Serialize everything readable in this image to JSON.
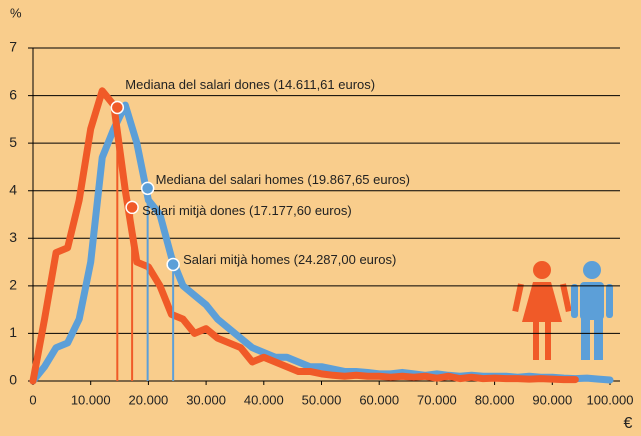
{
  "chart_data": {
    "type": "line",
    "ylabel": "%",
    "xlabel": "€",
    "x": [
      0,
      2000,
      4000,
      6000,
      8000,
      10000,
      12000,
      14000,
      16000,
      18000,
      20000,
      22000,
      24000,
      26000,
      28000,
      30000,
      32000,
      34000,
      36000,
      38000,
      40000,
      42000,
      44000,
      46000,
      48000,
      50000,
      52000,
      54000,
      56000,
      58000,
      60000,
      62000,
      64000,
      66000,
      68000,
      70000,
      72000,
      74000,
      76000,
      78000,
      80000,
      82000,
      84000,
      86000,
      88000,
      90000,
      92000,
      94000,
      96000,
      98000,
      100000
    ],
    "series": [
      {
        "color": "#5c9fd8",
        "values": [
          0,
          0.3,
          0.7,
          0.8,
          1.3,
          2.5,
          4.7,
          5.3,
          5.8,
          5.0,
          3.8,
          3.5,
          2.6,
          2.0,
          1.8,
          1.6,
          1.3,
          1.1,
          0.9,
          0.7,
          0.6,
          0.5,
          0.5,
          0.4,
          0.3,
          0.3,
          0.25,
          0.2,
          0.2,
          0.18,
          0.15,
          0.15,
          0.18,
          0.15,
          0.12,
          0.15,
          0.12,
          0.1,
          0.12,
          0.1,
          0.1,
          0.1,
          0.08,
          0.1,
          0.08,
          0.08,
          0.06,
          0.05,
          0.06,
          0.04,
          0.02
        ]
      },
      {
        "color": "#f05a28",
        "values": [
          0,
          1.3,
          2.7,
          2.8,
          3.8,
          5.3,
          6.1,
          5.8,
          4.0,
          2.5,
          2.4,
          2.0,
          1.4,
          1.3,
          1.0,
          1.1,
          0.9,
          0.8,
          0.7,
          0.4,
          0.5,
          0.4,
          0.3,
          0.2,
          0.2,
          0.15,
          0.12,
          0.1,
          0.12,
          0.1,
          0.1,
          0.08,
          0.1,
          0.08,
          0.1,
          0.06,
          0.1,
          0.05,
          0.08,
          0.05,
          0.06,
          0.05,
          0.05,
          0.04,
          0.05,
          0.04,
          0.03,
          0.03,
          null,
          null,
          null
        ]
      }
    ],
    "annotations": [
      {
        "text": "Mediana del salari dones (14.611,61 euros)",
        "x": 14611.61,
        "y": 5.75,
        "color": "#f05a28"
      },
      {
        "text": "Mediana del salari homes (19.867,65 euros)",
        "x": 19867.65,
        "y": 4.05,
        "color": "#5c9fd8"
      },
      {
        "text": "Salari mitjà dones (17.177,60 euros)",
        "x": 17177.6,
        "y": 3.65,
        "color": "#f05a28"
      },
      {
        "text": "Salari mitjà homes (24.287,00 euros)",
        "x": 24287.0,
        "y": 2.45,
        "color": "#5c9fd8"
      }
    ],
    "xlim": [
      0,
      100000
    ],
    "ylim": [
      0,
      7
    ],
    "xticks": [
      0,
      {
        "value": 10000,
        "label": "10.000"
      },
      {
        "value": 20000,
        "label": "20.000"
      },
      {
        "value": 30000,
        "label": "30.000"
      },
      {
        "value": 40000,
        "label": "40.000"
      },
      {
        "value": 50000,
        "label": "50.000"
      },
      {
        "value": 60000,
        "label": "60.000"
      },
      {
        "value": 70000,
        "label": "70.000"
      },
      {
        "value": 80000,
        "label": "80.000"
      },
      {
        "value": 90000,
        "label": "90.000"
      },
      {
        "value": 100000,
        "label": "100.000"
      }
    ],
    "yticks": [
      0,
      1,
      2,
      3,
      4,
      5,
      6,
      7
    ],
    "grid": true
  }
}
